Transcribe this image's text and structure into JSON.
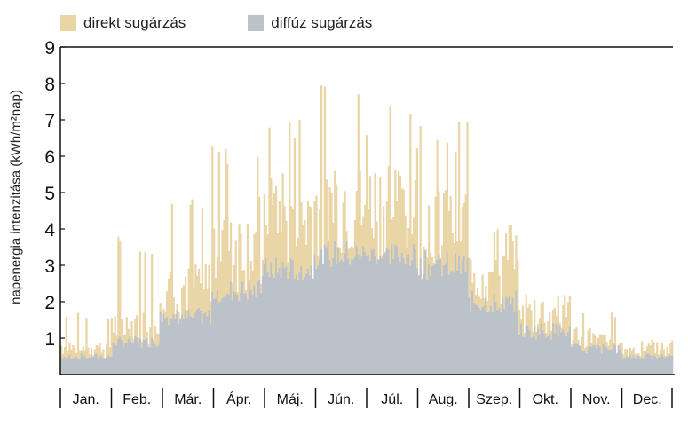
{
  "chart_data": {
    "type": "bar",
    "stacked": true,
    "title": "",
    "xlabel": "",
    "ylabel": "napenergia intenzitása (kWh/m²nap)",
    "ylim": [
      0,
      9
    ],
    "yticks": [
      1,
      2,
      3,
      4,
      5,
      6,
      7,
      8,
      9
    ],
    "grid": false,
    "legend_position": "top-left",
    "categories": [
      "Jan.",
      "Feb.",
      "Már.",
      "Ápr.",
      "Máj.",
      "Jún.",
      "Júl.",
      "Aug.",
      "Szep.",
      "Okt.",
      "Nov.",
      "Dec."
    ],
    "series": [
      {
        "name": "diffúz sugárzás",
        "color": "#bcc2c9",
        "values": [
          0.5,
          0.9,
          1.6,
          2.3,
          2.9,
          3.3,
          3.3,
          3.0,
          2.0,
          1.2,
          0.7,
          0.5
        ],
        "peaks": [
          0.6,
          1.1,
          1.9,
          2.7,
          3.3,
          3.8,
          3.7,
          3.5,
          2.4,
          1.5,
          0.9,
          0.6
        ]
      },
      {
        "name": "direkt sugárzás",
        "color": "#e9d5a6",
        "totals": [
          0.9,
          1.7,
          2.9,
          4.5,
          5.4,
          5.8,
          5.6,
          5.0,
          3.4,
          2.0,
          1.2,
          0.8
        ],
        "peaks": [
          1.7,
          3.8,
          4.9,
          6.6,
          7.2,
          8.1,
          7.6,
          7.2,
          4.3,
          2.5,
          1.8,
          1.0
        ]
      }
    ]
  }
}
